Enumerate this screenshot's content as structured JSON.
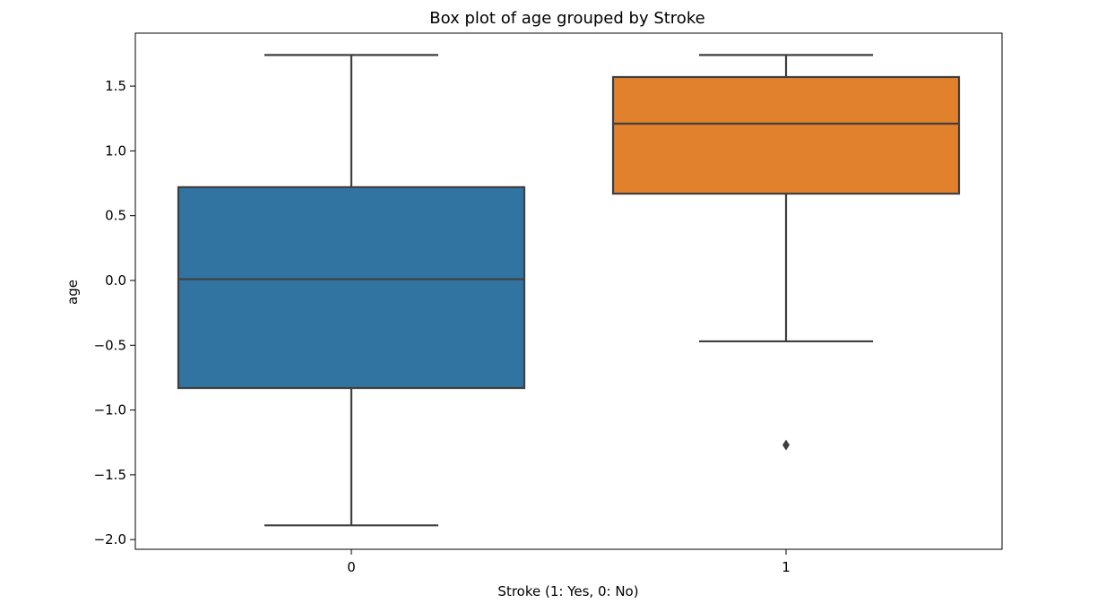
{
  "chart_data": {
    "type": "box",
    "title": "Box plot of age grouped by Stroke",
    "xlabel": "Stroke (1: Yes, 0: No)",
    "ylabel": "age",
    "ylim": [
      -2.07,
      1.89
    ],
    "yticks": [
      -2.0,
      -1.5,
      -1.0,
      -0.5,
      0.0,
      0.5,
      1.0,
      1.5
    ],
    "ytick_labels": [
      "−2.0",
      "−1.5",
      "−1.0",
      "−0.5",
      "0.0",
      "0.5",
      "1.0",
      "1.5"
    ],
    "categories": [
      "0",
      "1"
    ],
    "boxes": [
      {
        "category": "0",
        "color": "#3274a1",
        "whisker_low": -1.89,
        "q1": -0.83,
        "median": 0.01,
        "q3": 0.72,
        "whisker_high": 1.74,
        "outliers": []
      },
      {
        "category": "1",
        "color": "#e1812c",
        "whisker_low": -0.47,
        "q1": 0.67,
        "median": 1.21,
        "q3": 1.57,
        "whisker_high": 1.74,
        "outliers": [
          -1.27
        ]
      }
    ],
    "grid": false,
    "legend": "none"
  }
}
